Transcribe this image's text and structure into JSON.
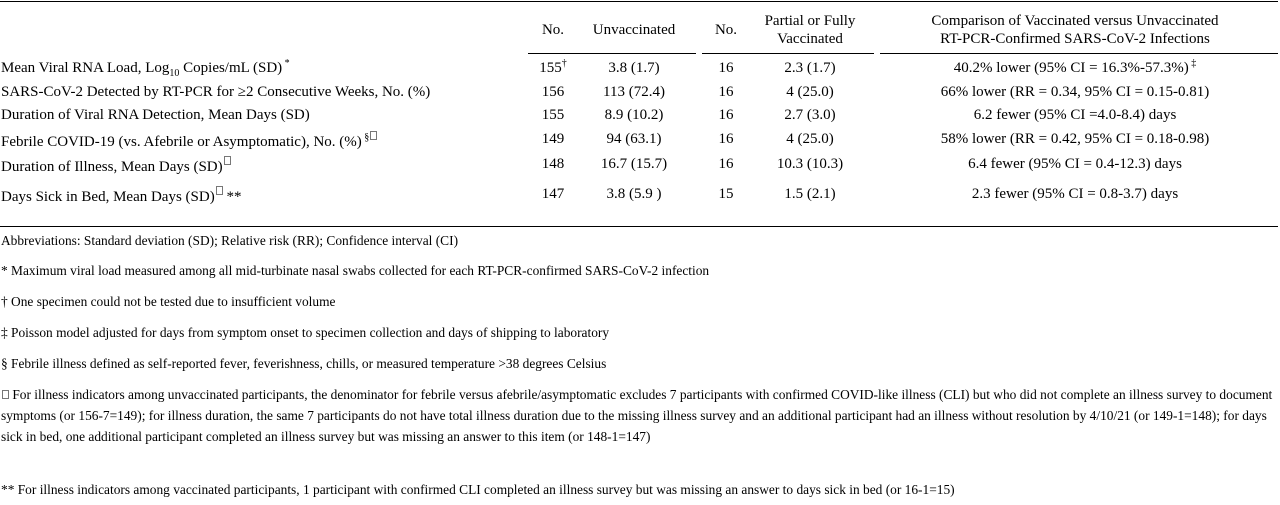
{
  "headers": {
    "no_unvax": "No.",
    "unvaccinated": "Unvaccinated",
    "no_vax": "No.",
    "vaccinated_line1": "Partial or Fully",
    "vaccinated_line2": "Vaccinated",
    "comparison_line1": "Comparison of Vaccinated versus Unvaccinated",
    "comparison_line2": "RT-PCR-Confirmed SARS-CoV-2 Infections"
  },
  "rows": [
    {
      "label_pre": "Mean Viral RNA Load, Log",
      "label_sub": "10",
      "label_post": " Copies/mL (SD)",
      "label_mark": " *",
      "n_unvax": "155",
      "n_unvax_mark": "†",
      "unvax": "3.8 (1.7)",
      "n_vax": "16",
      "vax": "2.3 (1.7)",
      "comparison": "40.2% lower (95% CI = 16.3%-57.3%)",
      "comparison_mark": " ‡"
    },
    {
      "label": "SARS-CoV-2 Detected by RT-PCR for ≥2 Consecutive Weeks, No. (%)",
      "n_unvax": "156",
      "unvax": "113 (72.4)",
      "n_vax": "16",
      "vax": "4 (25.0)",
      "comparison": "66% lower (RR = 0.34, 95% CI = 0.15-0.81)"
    },
    {
      "label": "Duration of Viral RNA Detection, Mean Days (SD)",
      "n_unvax": "155",
      "unvax": "8.9 (10.2)",
      "n_vax": "16",
      "vax": "2.7 (3.0)",
      "comparison": "6.2 fewer (95% CI =4.0-8.4) days"
    },
    {
      "label": "Febrile COVID-19 (vs. Afebrile or Asymptomatic), No. (%)",
      "label_mark": " §",
      "n_unvax": "149",
      "unvax": "94 (63.1)",
      "n_vax": "16",
      "vax": "4 (25.0)",
      "comparison": "58% lower (RR = 0.42, 95% CI = 0.18-0.98)"
    },
    {
      "label": "Duration of Illness, Mean Days (SD)",
      "n_unvax": "148",
      "unvax": "16.7 (15.7)",
      "n_vax": "16",
      "vax": "10.3 (10.3)",
      "comparison": "6.4 fewer (95% CI = 0.4-12.3) days"
    },
    {
      "label": "Days Sick in Bed, Mean Days (SD)",
      "label_mark2": " **",
      "n_unvax": "147",
      "unvax": "3.8 (5.9 )",
      "n_vax": "15",
      "vax": "1.5 (2.1)",
      "comparison": "2.3 fewer (95% CI = 0.8-3.7) days"
    }
  ],
  "notes": {
    "abbreviations": "Abbreviations: Standard deviation (SD); Relative risk (RR); Confidence interval (CI)",
    "star": "* Maximum viral load measured among all mid-turbinate nasal swabs collected for each RT-PCR-confirmed SARS-CoV-2 infection",
    "dagger": "† One specimen could not be tested due to insufficient volume",
    "ddagger": "‡ Poisson model adjusted for days from symptom onset to specimen collection and days of shipping to laboratory",
    "section": "§ Febrile illness defined as self-reported fever, feverishness, chills, or measured temperature >38 degrees Celsius",
    "box": " For illness indicators among unvaccinated participants, the denominator for febrile versus afebrile/asymptomatic excludes 7 participants with confirmed COVID-like illness (CLI) but who did not complete an illness survey to document symptoms (or 156-7=149); for illness duration, the same 7 participants do not have total illness duration due to the missing illness survey and an additional participant had an illness without resolution by 4/10/21 (or 149-1=148); for days sick in bed, one additional participant completed an illness survey but was missing an answer to this item (or 148-1=147)",
    "double_star": "** For illness indicators among vaccinated participants, 1 participant with confirmed CLI completed an illness survey but was missing an answer to days sick in bed (or 16-1=15)"
  }
}
